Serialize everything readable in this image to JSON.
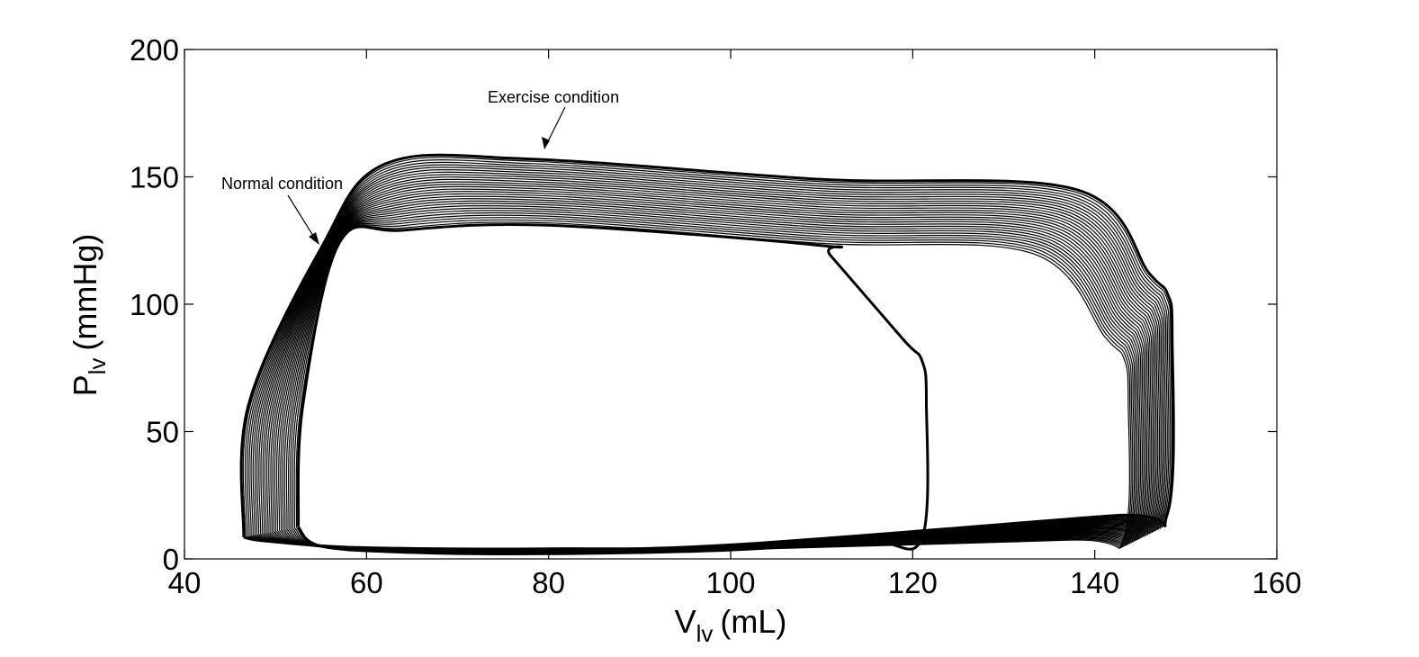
{
  "chart_data": {
    "type": "line",
    "title": "",
    "xlabel": {
      "main": "V",
      "sub": "lv",
      "unit": "(mL)"
    },
    "ylabel": {
      "main": "P",
      "sub": "lv",
      "unit": "(mmHg)"
    },
    "xlim": [
      40,
      160
    ],
    "ylim": [
      0,
      200
    ],
    "xticks": [
      "40",
      "60",
      "80",
      "100",
      "120",
      "140",
      "160"
    ],
    "yticks": [
      "0",
      "50",
      "100",
      "150",
      "200"
    ],
    "grid": false,
    "legend": "none",
    "line_color": "#000000",
    "loop_count": 30,
    "loop_start": {
      "name": "Normal condition",
      "esv": 51,
      "ed_start_p": 12,
      "edv": 143,
      "ed_end_p": 8,
      "pk_v": 80,
      "pk_p": 131,
      "ejection_end_v": 144,
      "ejection_end_p": 72,
      "early_eject_v": 57,
      "early_eject_p": 124,
      "min_p": 2
    },
    "loop_end": {
      "name": "Exercise condition",
      "esv": 45,
      "ed_start_p": 8,
      "edv": 148,
      "ed_end_p": 18,
      "pk_v": 78,
      "pk_p": 157,
      "ejection_end_v": 148,
      "ejection_end_p": 98,
      "early_eject_v": 55,
      "early_eject_p": 122,
      "min_p": 4
    },
    "transition_loop": {
      "edv": 121,
      "ed_end_p": 8
    },
    "annotations": [
      {
        "text": "Exercise condition",
        "point": [
          79,
          159
        ]
      },
      {
        "text": "Normal condition",
        "point": [
          55,
          123
        ]
      }
    ]
  }
}
